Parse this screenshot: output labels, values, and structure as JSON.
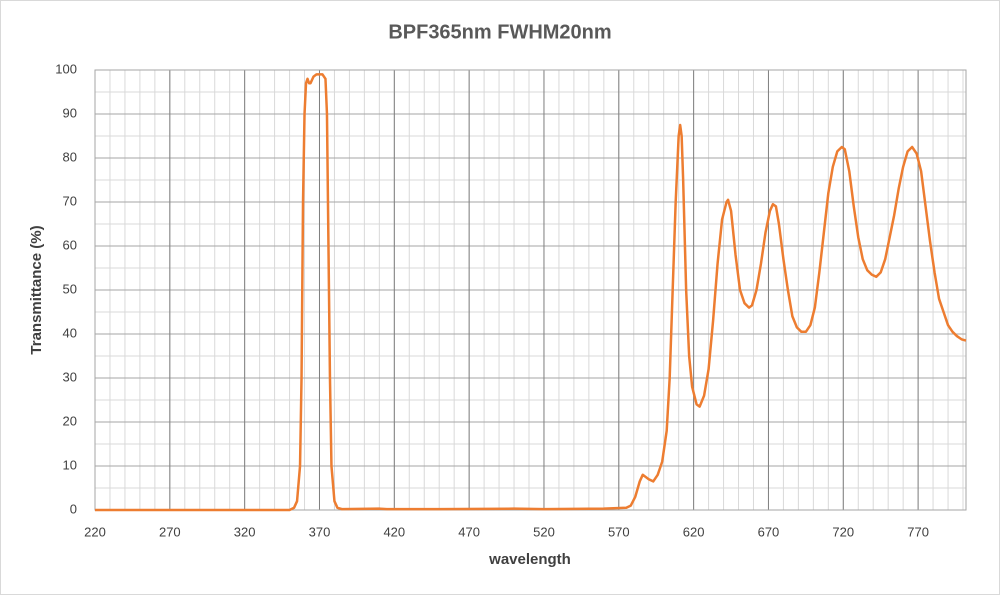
{
  "chart_data": {
    "type": "line",
    "title": "BPF365nm FWHM20nm",
    "x_label": "wavelength",
    "y_label": "Transmittance (%)",
    "xlim": [
      220,
      802
    ],
    "ylim": [
      0,
      100
    ],
    "xticks": [
      220,
      270,
      320,
      370,
      420,
      470,
      520,
      570,
      620,
      670,
      720,
      770
    ],
    "yticks": [
      0,
      10,
      20,
      30,
      40,
      50,
      60,
      70,
      80,
      90,
      100
    ],
    "grid": true,
    "minor_grid": true,
    "legend": false,
    "x": [
      220,
      350,
      353,
      355,
      357,
      358,
      359,
      360,
      361,
      362,
      363,
      364,
      366,
      368,
      372,
      374,
      375,
      376,
      377,
      378,
      380,
      382,
      385,
      410,
      415,
      450,
      500,
      520,
      560,
      575,
      578,
      581,
      584,
      586,
      588,
      590,
      593,
      596,
      599,
      602,
      604,
      606,
      608,
      610,
      611,
      612,
      613,
      615,
      617,
      619,
      622,
      624,
      627,
      630,
      633,
      636,
      639,
      642,
      643,
      645,
      648,
      651,
      654,
      657,
      659,
      662,
      665,
      668,
      671,
      673,
      675,
      677,
      680,
      683,
      686,
      689,
      692,
      695,
      698,
      701,
      704,
      707,
      710,
      713,
      716,
      719,
      721,
      724,
      727,
      730,
      733,
      736,
      739,
      742,
      745,
      748,
      751,
      754,
      757,
      760,
      763,
      766,
      769,
      772,
      775,
      778,
      781,
      784,
      787,
      790,
      793,
      796,
      799,
      802
    ],
    "series": [
      {
        "name": "BPF365nm FWHM20nm",
        "color": "#ed7d31",
        "values": [
          0,
          0,
          0.5,
          2,
          10,
          30,
          70,
          90,
          97,
          98,
          97,
          97,
          98.5,
          99,
          99,
          98,
          90,
          60,
          30,
          10,
          2,
          0.5,
          0.2,
          0.3,
          0.2,
          0.2,
          0.3,
          0.2,
          0.3,
          0.5,
          1,
          3,
          6.5,
          8,
          7.5,
          7,
          6.5,
          8,
          11,
          18,
          30,
          50,
          70,
          85,
          87.5,
          85,
          75,
          50,
          35,
          28,
          24,
          23.5,
          26,
          32,
          43,
          56,
          66,
          70,
          70.5,
          68,
          58,
          50,
          47,
          46,
          46.5,
          50,
          56,
          63,
          68,
          69.5,
          69,
          65,
          57,
          50,
          44,
          41.5,
          40.5,
          40.5,
          42,
          46,
          54,
          63,
          72,
          78,
          81.5,
          82.5,
          82,
          77,
          69,
          62,
          57,
          54.5,
          53.5,
          53,
          54,
          57,
          62,
          67,
          73,
          78,
          81.5,
          82.5,
          81,
          77,
          69,
          61,
          54,
          48,
          45,
          42,
          40.5,
          39.5,
          38.8,
          38.5
        ]
      }
    ]
  }
}
